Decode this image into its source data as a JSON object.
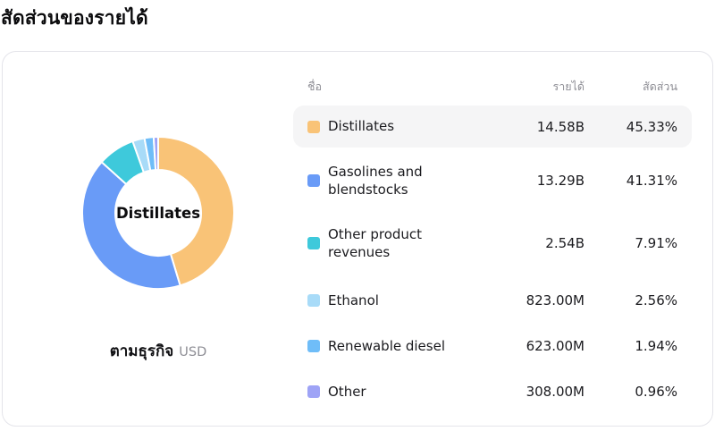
{
  "page": {
    "title": "สัดส่วนของรายได้"
  },
  "card": {
    "donut_center_label": "Distillates",
    "footer": {
      "label": "ตามธุรกิจ",
      "currency": "USD"
    }
  },
  "table": {
    "headers": {
      "name": "ชื่อ",
      "revenue": "รายได้",
      "share": "สัดส่วน"
    },
    "rows": [
      {
        "name": "Distillates",
        "revenue": "14.58B",
        "share": "45.33%"
      },
      {
        "name": "Gasolines and blendstocks",
        "revenue": "13.29B",
        "share": "41.31%"
      },
      {
        "name": "Other product revenues",
        "revenue": "2.54B",
        "share": "7.91%"
      },
      {
        "name": "Ethanol",
        "revenue": "823.00M",
        "share": "2.56%"
      },
      {
        "name": "Renewable diesel",
        "revenue": "623.00M",
        "share": "1.94%"
      },
      {
        "name": "Other",
        "revenue": "308.00M",
        "share": "0.96%"
      }
    ]
  },
  "chart_data": {
    "type": "pie",
    "title": "สัดส่วนของรายได้",
    "subtitle": "ตามธุรกิจ (USD)",
    "donut": true,
    "center_label": "Distillates",
    "legend_position": "right-table",
    "categories": [
      "Distillates",
      "Gasolines and blendstocks",
      "Other product revenues",
      "Ethanol",
      "Renewable diesel",
      "Other"
    ],
    "values_percent": [
      45.33,
      41.31,
      7.91,
      2.56,
      1.94,
      0.96
    ],
    "values_revenue_usd": [
      "14.58B",
      "13.29B",
      "2.54B",
      "823.00M",
      "623.00M",
      "308.00M"
    ],
    "colors": [
      "#f9c377",
      "#699bf7",
      "#3ec9db",
      "#a8dbf8",
      "#6fbdf8",
      "#9ea3f6"
    ],
    "start_angle_deg": 0,
    "direction": "clockwise",
    "inner_radius_ratio": 0.565
  }
}
